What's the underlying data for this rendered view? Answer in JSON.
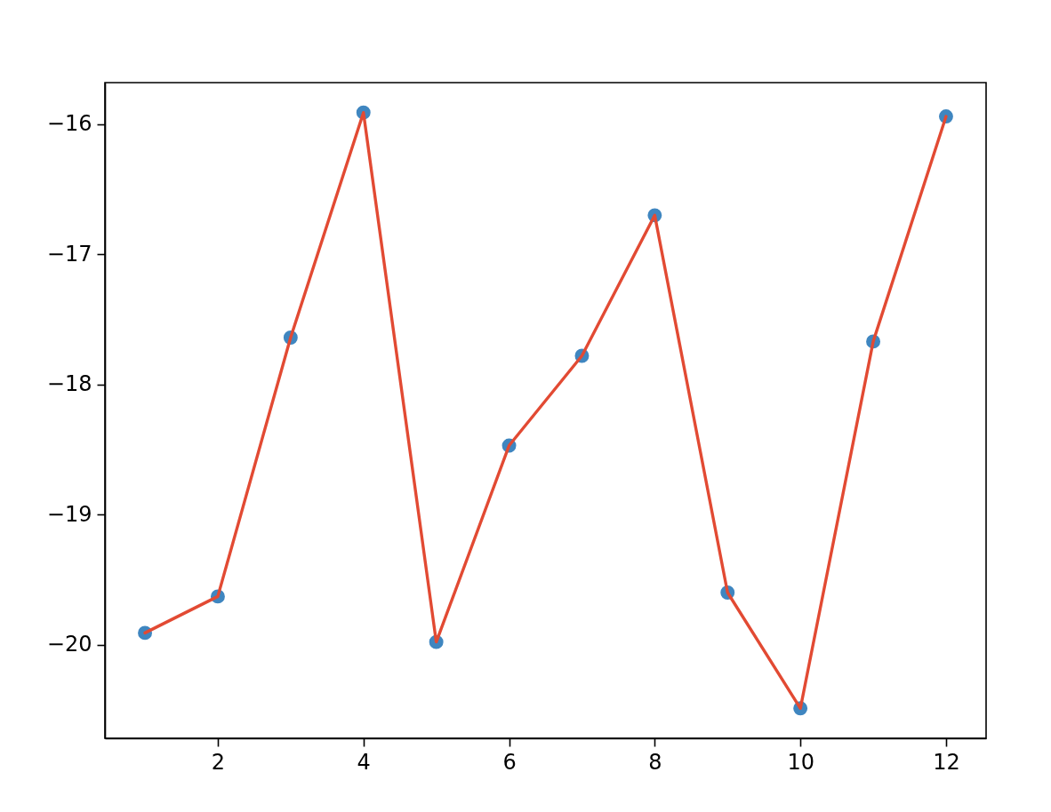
{
  "chart_data": {
    "type": "line",
    "x": [
      1,
      2,
      3,
      4,
      5,
      6,
      7,
      8,
      9,
      10,
      11,
      12
    ],
    "series": [
      {
        "type": "scatter",
        "marker": "circle",
        "color": "#3f86c0",
        "values": [
          -19.91,
          -19.63,
          -17.64,
          -15.91,
          -19.98,
          -18.47,
          -17.78,
          -16.7,
          -19.6,
          -20.49,
          -17.67,
          -15.94
        ]
      },
      {
        "type": "line",
        "color": "#e24a33",
        "values": [
          -19.91,
          -19.63,
          -17.64,
          -15.91,
          -19.98,
          -18.47,
          -17.78,
          -16.7,
          -19.6,
          -20.49,
          -17.67,
          -15.94
        ]
      }
    ],
    "xlim": [
      0.45,
      12.55
    ],
    "xticks": [
      2,
      4,
      6,
      8,
      10,
      12
    ],
    "ylim": [
      -20.72,
      -15.68
    ],
    "yticks": [
      -20,
      -19,
      -18,
      -17,
      -16
    ]
  }
}
